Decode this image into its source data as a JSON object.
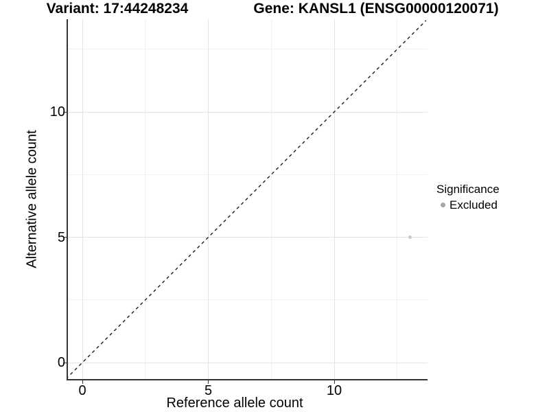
{
  "chart": {
    "title_left": "Variant: 17:44248234",
    "title_right": "Gene: KANSL1 (ENSG00000120071)",
    "xlabel": "Reference allele count",
    "ylabel": "Alternative allele count",
    "legend": {
      "title": "Significance",
      "items": [
        {
          "label": "Excluded",
          "color": "#a6a6a6"
        }
      ]
    }
  },
  "chart_data": {
    "type": "scatter",
    "title": "Variant: 17:44248234   Gene: KANSL1 (ENSG00000120071)",
    "xlabel": "Reference allele count",
    "ylabel": "Alternative allele count",
    "xlim": [
      -0.65,
      13.65
    ],
    "ylim": [
      -0.65,
      13.65
    ],
    "x_ticks": [
      0,
      5,
      10
    ],
    "y_ticks": [
      0,
      5,
      10
    ],
    "x_minor_ticks": [
      2.5,
      7.5,
      12.5
    ],
    "y_minor_ticks": [
      2.5,
      7.5,
      12.5
    ],
    "grid": true,
    "legend_position": "right",
    "series": [
      {
        "name": "Excluded",
        "color": "#c8c8c8",
        "points": [
          [
            13,
            5
          ]
        ]
      }
    ],
    "reference_line": {
      "type": "identity",
      "style": "dashed",
      "color": "#1a1a1a"
    }
  },
  "colors": {
    "grid_major": "#e3e3e3",
    "grid_minor": "#f1f1f1",
    "axis": "#333333",
    "text": "#000000"
  }
}
